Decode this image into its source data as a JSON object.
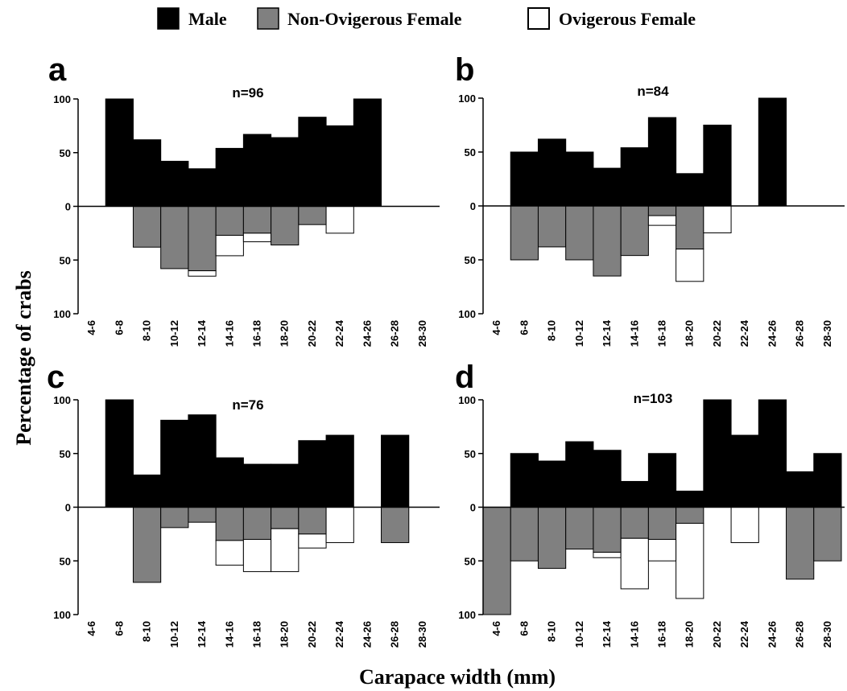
{
  "legend": [
    {
      "label": "Male",
      "color": "#000000"
    },
    {
      "label": "Non-Ovigerous Female",
      "color": "#808080"
    },
    {
      "label": "Ovigerous Female",
      "color": "#ffffff"
    }
  ],
  "axes": {
    "xlabel": "Carapace width (mm)",
    "ylabel": "Percentage of crabs"
  },
  "chart_data": [
    {
      "panel": "a",
      "n_label": "n=96",
      "type": "bar",
      "categories": [
        "4-6",
        "6-8",
        "8-10",
        "10-12",
        "12-14",
        "14-16",
        "16-18",
        "18-20",
        "20-22",
        "22-24",
        "24-26",
        "26-28",
        "28-30"
      ],
      "y_ticks": [
        "100",
        "50",
        "0",
        "50",
        "100"
      ],
      "ylim": [
        -100,
        100
      ],
      "series": [
        {
          "name": "Male",
          "values": [
            0,
            100,
            62,
            42,
            35,
            54,
            67,
            64,
            83,
            75,
            100,
            0,
            0
          ]
        },
        {
          "name": "Non-Ovigerous Female",
          "values": [
            0,
            0,
            38,
            58,
            60,
            27,
            25,
            36,
            17,
            0,
            0,
            0,
            0
          ]
        },
        {
          "name": "Ovigerous Female",
          "values": [
            0,
            0,
            0,
            0,
            5,
            19,
            8,
            0,
            0,
            25,
            0,
            0,
            0
          ]
        }
      ]
    },
    {
      "panel": "b",
      "n_label": "n=84",
      "type": "bar",
      "categories": [
        "4-6",
        "6-8",
        "8-10",
        "10-12",
        "12-14",
        "14-16",
        "16-18",
        "18-20",
        "20-22",
        "22-24",
        "24-26",
        "26-28",
        "28-30"
      ],
      "y_ticks": [
        "100",
        "50",
        "0",
        "50",
        "100"
      ],
      "ylim": [
        -100,
        100
      ],
      "series": [
        {
          "name": "Male",
          "values": [
            0,
            50,
            62,
            50,
            35,
            54,
            82,
            30,
            75,
            0,
            100,
            0,
            0
          ]
        },
        {
          "name": "Non-Ovigerous Female",
          "values": [
            0,
            50,
            38,
            50,
            65,
            46,
            9,
            40,
            0,
            0,
            0,
            0,
            0
          ]
        },
        {
          "name": "Ovigerous Female",
          "values": [
            0,
            0,
            0,
            0,
            0,
            0,
            9,
            30,
            25,
            0,
            0,
            0,
            0
          ]
        }
      ]
    },
    {
      "panel": "c",
      "n_label": "n=76",
      "type": "bar",
      "categories": [
        "4-6",
        "6-8",
        "8-10",
        "10-12",
        "12-14",
        "14-16",
        "16-18",
        "18-20",
        "20-22",
        "22-24",
        "24-26",
        "26-28",
        "28-30"
      ],
      "y_ticks": [
        "100",
        "50",
        "0",
        "50",
        "100"
      ],
      "ylim": [
        -100,
        100
      ],
      "series": [
        {
          "name": "Male",
          "values": [
            0,
            100,
            30,
            81,
            86,
            46,
            40,
            40,
            62,
            67,
            0,
            67,
            0
          ]
        },
        {
          "name": "Non-Ovigerous Female",
          "values": [
            0,
            0,
            70,
            19,
            14,
            31,
            30,
            20,
            25,
            0,
            0,
            33,
            0
          ]
        },
        {
          "name": "Ovigerous Female",
          "values": [
            0,
            0,
            0,
            0,
            0,
            23,
            30,
            40,
            13,
            33,
            0,
            0,
            0
          ]
        }
      ]
    },
    {
      "panel": "d",
      "n_label": "n=103",
      "type": "bar",
      "categories": [
        "4-6",
        "6-8",
        "8-10",
        "10-12",
        "12-14",
        "14-16",
        "16-18",
        "18-20",
        "20-22",
        "22-24",
        "24-26",
        "26-28",
        "28-30"
      ],
      "y_ticks": [
        "100",
        "50",
        "0",
        "50",
        "100"
      ],
      "ylim": [
        -100,
        100
      ],
      "series": [
        {
          "name": "Male",
          "values": [
            0,
            50,
            43,
            61,
            53,
            24,
            50,
            15,
            100,
            67,
            100,
            33,
            50
          ]
        },
        {
          "name": "Non-Ovigerous Female",
          "values": [
            100,
            50,
            57,
            39,
            42,
            29,
            30,
            15,
            0,
            0,
            0,
            67,
            50
          ]
        },
        {
          "name": "Ovigerous Female",
          "values": [
            0,
            0,
            0,
            0,
            5,
            47,
            20,
            70,
            0,
            33,
            0,
            0,
            0
          ]
        }
      ]
    }
  ]
}
